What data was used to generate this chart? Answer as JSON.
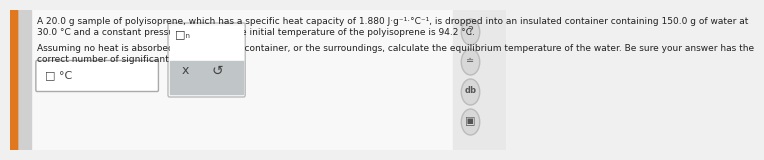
{
  "bg_color": "#f0f0f0",
  "left_bar_color": "#e07820",
  "text_color": "#222222",
  "line1": "A 20.0 g sample of polyisoprene, which has a specific heat capacity of 1.880 J·g⁻¹·°C⁻¹, is dropped into an insulated container containing 150.0 g of water at",
  "line2": "30.0 °C and a constant pressure of 1 atm. The initial temperature of the polyisoprene is 94.2 °C.",
  "line3": "Assuming no heat is absorbed from or by the container, or the surroundings, calculate the equilibrium temperature of the water. Be sure your answer has the",
  "line4": "correct number of significant digits.",
  "input_box_text": "□ °C",
  "symbol_top_text": "□ₙ",
  "x_symbol": "x",
  "refresh_symbol": "↺",
  "question_mark": "?",
  "sidebar_icon1": "☰",
  "sidebar_icon2": "db",
  "sidebar_icon3": "⬜",
  "main_text_fontsize": 6.5,
  "input_box_bg": "#ffffff",
  "input_box_border": "#aaaaaa",
  "symbol_box_bg": "#f8f8f8",
  "symbol_box_border": "#bbbbbb",
  "symbol_bottom_bg": "#c0c5c8",
  "sidebar_bg": "#e8e8e8",
  "sidebar_icon_bg": "#d8d8d8",
  "sidebar_icon_border": "#bbbbbb"
}
